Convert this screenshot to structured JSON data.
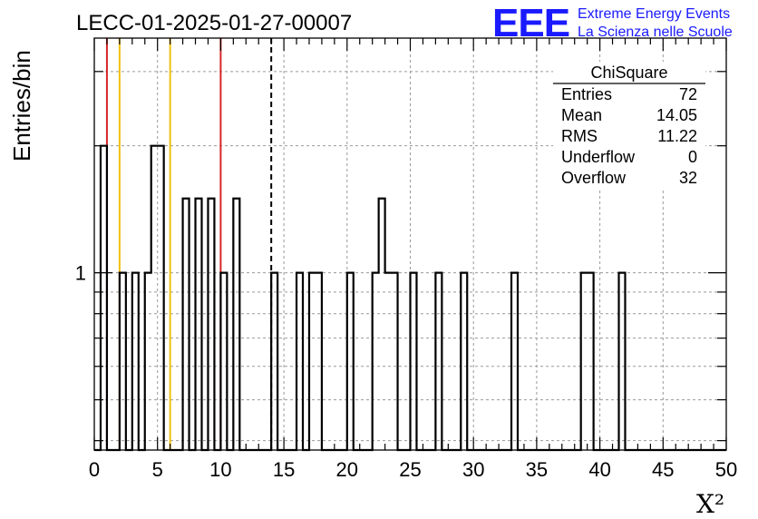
{
  "chart_data": {
    "type": "bar",
    "title": "LECC-01-2025-01-27-00007",
    "xlabel": "X²",
    "ylabel": "Entries/bin",
    "xlim": [
      0,
      50
    ],
    "x_ticks": [
      "0",
      "5",
      "10",
      "15",
      "20",
      "25",
      "30",
      "35",
      "40",
      "45",
      "50"
    ],
    "y_scale": "log",
    "ylim": [
      0.38,
      3.6
    ],
    "y_tick_labels": [
      "1"
    ],
    "grid": true,
    "bin_width": 0.5,
    "series": [
      {
        "values": [
          0,
          2,
          0,
          0,
          1,
          0,
          1,
          0,
          1,
          2,
          2,
          0,
          0,
          0,
          1.5,
          0,
          1.5,
          0,
          1.5,
          0,
          1,
          0,
          1.5,
          0,
          0,
          0,
          0,
          0,
          1,
          0,
          0,
          0,
          1,
          0,
          1,
          1,
          0,
          0,
          0,
          0,
          1,
          0,
          0,
          0,
          1,
          1.5,
          1,
          1,
          0,
          0,
          1,
          0,
          0,
          0,
          1,
          0,
          0,
          0,
          1,
          0,
          0,
          0,
          0,
          0,
          0,
          0,
          1,
          0,
          0,
          0,
          0,
          0,
          0,
          0,
          0,
          0,
          0,
          1,
          1,
          0,
          0,
          0,
          0,
          1,
          0,
          0,
          0,
          0,
          0,
          0,
          0,
          0,
          0,
          0,
          0,
          0,
          0,
          0,
          0,
          0
        ]
      }
    ],
    "reference_lines": [
      {
        "x": 1,
        "color": "#d62728"
      },
      {
        "x": 2,
        "color": "#f2c010"
      },
      {
        "x": 6,
        "color": "#f2c010"
      },
      {
        "x": 10,
        "color": "#d62728"
      },
      {
        "x": 14,
        "color": "#000000",
        "style": "dashed"
      }
    ]
  },
  "stats_box": {
    "title": "ChiSquare",
    "rows": [
      {
        "label": "Entries",
        "value": "72"
      },
      {
        "label": "Mean",
        "value": "14.05"
      },
      {
        "label": "RMS",
        "value": "11.22"
      },
      {
        "label": "Underflow",
        "value": "0"
      },
      {
        "label": "Overflow",
        "value": "32"
      }
    ]
  },
  "logo": {
    "mark": "EEE",
    "line1": "Extreme Energy Events",
    "line2": "La Scienza nelle Scuole",
    "color": "#1a1aff"
  }
}
